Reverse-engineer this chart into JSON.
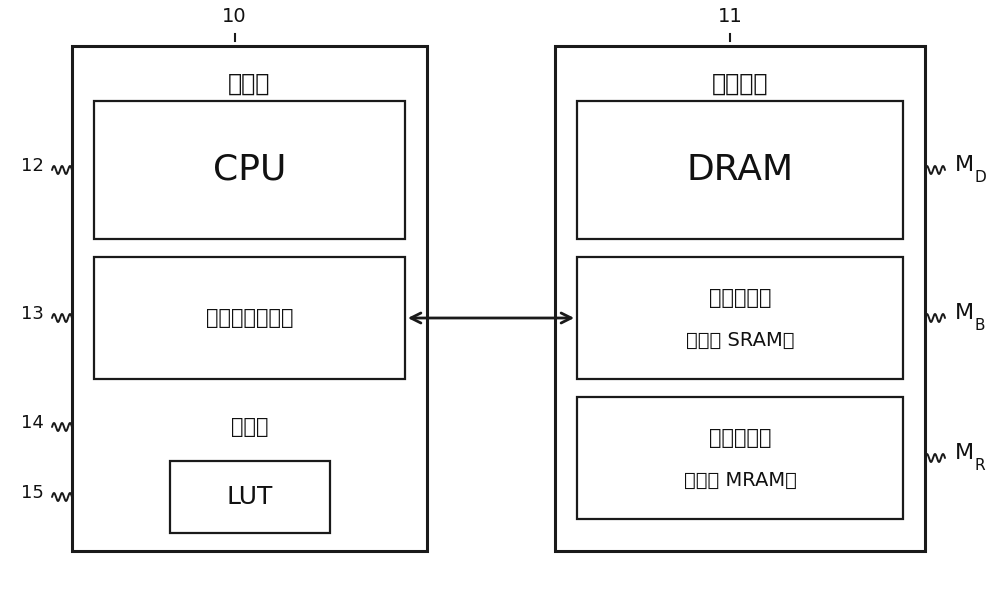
{
  "bg_color": "#ffffff",
  "box_color": "#ffffff",
  "border_color": "#1a1a1a",
  "text_color": "#111111",
  "fig_width": 10.0,
  "fig_height": 5.93,
  "label_10": "10",
  "label_11": "11",
  "label_12": "12",
  "label_13": "13",
  "label_14": "14",
  "label_15": "15",
  "label_MD": "M",
  "label_MB": "M",
  "label_MR": "M",
  "sub_D": "D",
  "sub_B": "B",
  "sub_R": "R",
  "proc_title": "处理器",
  "mem_title": "主存储器",
  "cpu_label": "CPU",
  "cache_label": "高速缓存存储器",
  "ctrl_label": "控制器",
  "lut_label": "LUT",
  "dram_label": "DRAM",
  "buf_label1": "缓冲存储器",
  "buf_label2": "（例如 SRAM）",
  "restore_label1": "还原存储器",
  "restore_label2": "（例如 MRAM）"
}
